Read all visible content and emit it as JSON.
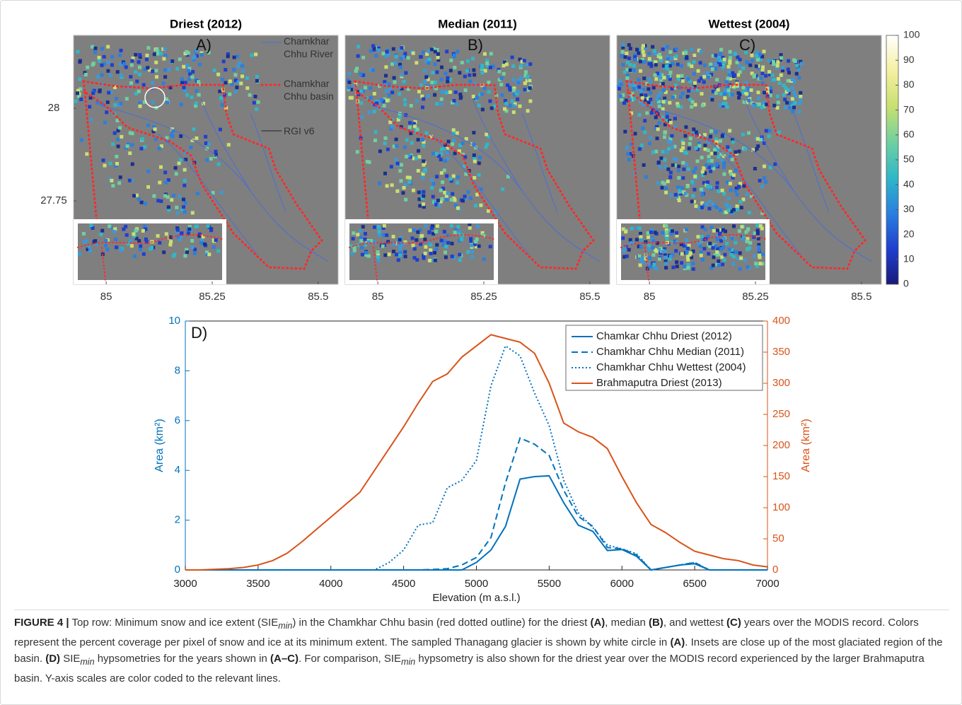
{
  "maps": {
    "panels": [
      {
        "title": "Driest (2012)",
        "label": "A)",
        "density": 0.35
      },
      {
        "title": "Median (2011)",
        "label": "B)",
        "density": 0.5
      },
      {
        "title": "Wettest (2004)",
        "label": "C)",
        "density": 0.8
      }
    ],
    "xlim": [
      84.923,
      85.547
    ],
    "ylim": [
      27.525,
      28.197
    ],
    "xticks": [
      85,
      85.25,
      85.5
    ],
    "yticks": [
      28,
      27.75
    ],
    "legend": [
      {
        "label": "Chamkhar Chhu River",
        "color": "#4a6fd6",
        "style": "solid"
      },
      {
        "label": "Chamkhar Chhu basin",
        "color": "#ff2a2a",
        "style": "dotted"
      },
      {
        "label": "RGI v6",
        "color": "#222222",
        "style": "solid"
      }
    ],
    "colorbar": {
      "lim": [
        0,
        100
      ],
      "ticks": [
        0,
        10,
        20,
        30,
        40,
        50,
        60,
        70,
        80,
        90,
        100
      ],
      "colors": [
        "#1a1a7a",
        "#1f3fd0",
        "#2a7fe0",
        "#2fb8c8",
        "#6fd0a0",
        "#c8e070",
        "#f5f0a0",
        "#ffffff"
      ]
    }
  },
  "chart_data": {
    "type": "line",
    "label": "D)",
    "xlabel": "Elevation (m a.s.l.)",
    "ylabel": "Area (km²)",
    "y2label": "Area (km²)",
    "y_color": "#0072bd",
    "y2_color": "#d95319",
    "x": [
      3000,
      3100,
      3200,
      3300,
      3400,
      3500,
      3600,
      3700,
      3800,
      3900,
      4000,
      4100,
      4200,
      4300,
      4400,
      4500,
      4600,
      4700,
      4800,
      4900,
      5000,
      5100,
      5200,
      5300,
      5400,
      5500,
      5600,
      5700,
      5800,
      5900,
      6000,
      6100,
      6200,
      6300,
      6400,
      6500,
      6600,
      6700,
      6800,
      6900,
      7000
    ],
    "xlim": [
      3000,
      7000
    ],
    "xticks": [
      3000,
      3500,
      4000,
      4500,
      5000,
      5500,
      6000,
      6500,
      7000
    ],
    "ylim": [
      0,
      10
    ],
    "yticks": [
      0,
      2,
      4,
      6,
      8,
      10
    ],
    "y2lim": [
      0,
      400
    ],
    "y2ticks": [
      0,
      50,
      100,
      150,
      200,
      250,
      300,
      350,
      400
    ],
    "grid": false,
    "legend": "top-right",
    "series": [
      {
        "name": "Chamkar Chhu Driest (2012)",
        "color": "#0072bd",
        "dash": "solid",
        "values": [
          0,
          0,
          0,
          0,
          0,
          0,
          0,
          0,
          0,
          0,
          0,
          0,
          0,
          0,
          0,
          0,
          0,
          0,
          0,
          0,
          0.3,
          0.8,
          1.75,
          3.65,
          3.75,
          3.78,
          2.7,
          1.8,
          1.55,
          0.78,
          0.82,
          0.55,
          0,
          0.1,
          0.2,
          0.25,
          0,
          0,
          0,
          0,
          0
        ]
      },
      {
        "name": "Chamkhar Chhu Median (2011)",
        "color": "#0072bd",
        "dash": "dashed",
        "values": [
          0,
          0,
          0,
          0,
          0,
          0,
          0,
          0,
          0,
          0,
          0,
          0,
          0,
          0,
          0,
          0,
          0,
          0.02,
          0.05,
          0.2,
          0.5,
          1.3,
          3.5,
          5.3,
          5.05,
          4.6,
          3.2,
          2.15,
          1.75,
          0.9,
          0.85,
          0.6,
          0,
          0.1,
          0.2,
          0.3,
          0,
          0,
          0,
          0,
          0
        ]
      },
      {
        "name": "Chamkhar Chhu Wettest (2004)",
        "color": "#0072bd",
        "dash": "dotted",
        "values": [
          0,
          0,
          0,
          0,
          0,
          0,
          0,
          0,
          0,
          0,
          0,
          0,
          0,
          0,
          0.3,
          0.8,
          1.8,
          1.9,
          3.3,
          3.6,
          4.4,
          7.4,
          9.0,
          8.6,
          7.1,
          5.8,
          3.6,
          2.3,
          1.7,
          1.0,
          0.85,
          0.65,
          0,
          0.1,
          0.2,
          0.3,
          0,
          0,
          0,
          0,
          0
        ]
      },
      {
        "name": "Brahmaputra Driest (2013)",
        "color": "#d95319",
        "dash": "solid",
        "axis": "y2",
        "values": [
          0,
          0,
          1,
          2,
          4,
          8,
          15,
          27,
          45,
          65,
          85,
          105,
          125,
          160,
          195,
          230,
          268,
          303,
          315,
          342,
          360,
          378,
          372,
          366,
          348,
          300,
          236,
          222,
          213,
          195,
          150,
          108,
          73,
          60,
          44,
          30,
          24,
          18,
          15,
          8,
          5
        ]
      }
    ]
  },
  "caption": [
    "FIGURE 4 |",
    " Top row: Minimum snow and ice extent (SIE",
    "min",
    ") in the Chamkhar Chhu basin (red dotted outline) for the driest ",
    "(A)",
    ", median ",
    "(B)",
    ", and wettest ",
    "(C)",
    " years over the MODIS record. Colors represent the percent coverage per pixel of snow and ice at its minimum extent. The sampled Thanagang glacier is shown by white circle in ",
    "(A)",
    ". Insets are close up of the most glaciated region of the basin. ",
    "(D)",
    " SIE",
    "min",
    " hypsometries for the years shown in ",
    "(A–C)",
    ". For comparison, SIE",
    "min",
    " hypsometry is also shown for the driest year over the MODIS record experienced by the larger Brahmaputra basin. Y-axis scales are color coded to the relevant lines."
  ]
}
